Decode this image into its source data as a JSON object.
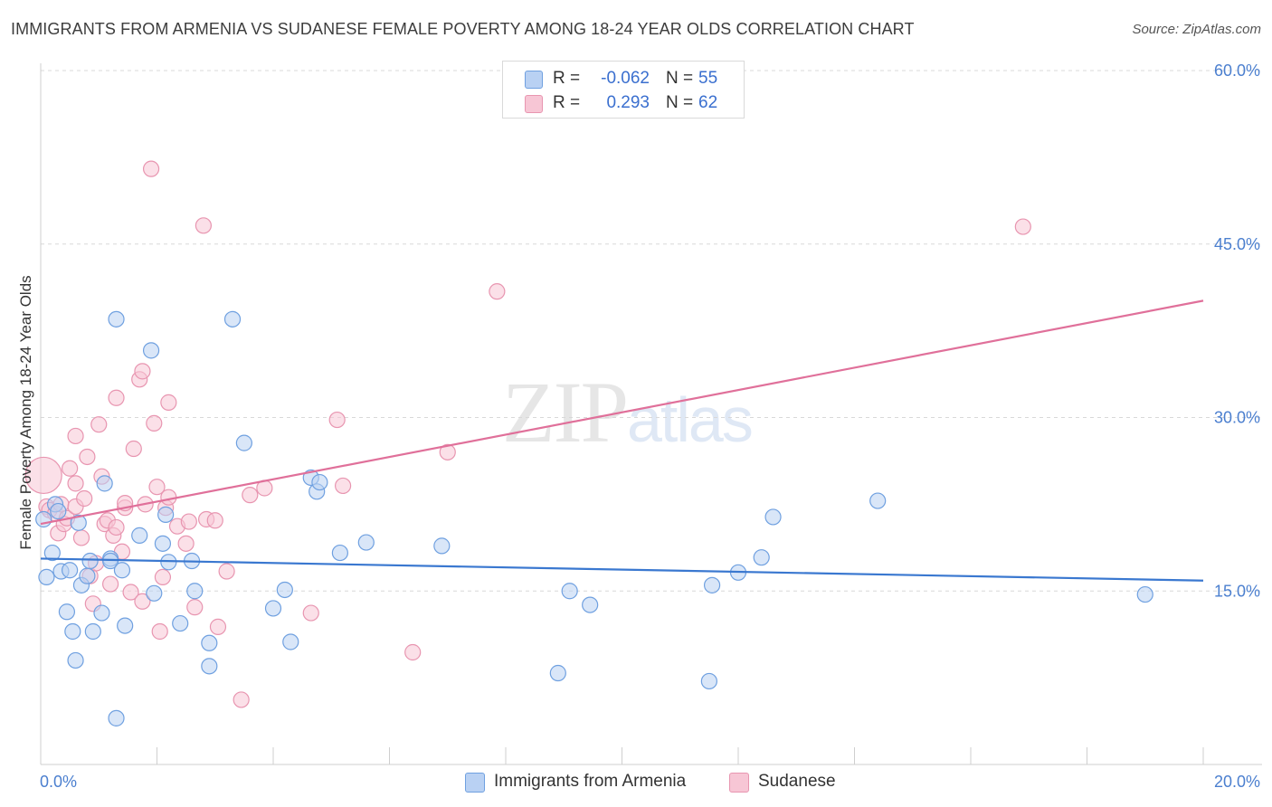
{
  "title": "IMMIGRANTS FROM ARMENIA VS SUDANESE FEMALE POVERTY AMONG 18-24 YEAR OLDS CORRELATION CHART",
  "source": "Source: ZipAtlas.com",
  "watermark": {
    "zip": "ZIP",
    "atlas": "atlas"
  },
  "colors": {
    "armenia": "#6fa0e0",
    "armenia_fill": "#b9d1f3",
    "armenia_line": "#3a78d0",
    "sudanese": "#e895b0",
    "sudanese_fill": "#f7c6d5",
    "sudanese_line": "#e0709a",
    "tick_text": "#4b7fcf",
    "grid": "#d8d8d8"
  },
  "legend": {
    "rows": [
      {
        "r_label": "R =",
        "r_value": "-0.062",
        "n_label": "N =",
        "n_value": "55"
      },
      {
        "r_label": "R =",
        "r_value": "0.293",
        "n_label": "N =",
        "n_value": "62"
      }
    ]
  },
  "bottom_legend": [
    "Immigrants from Armenia",
    "Sudanese"
  ],
  "chart_data": {
    "type": "scatter",
    "title": "IMMIGRANTS FROM ARMENIA VS SUDANESE FEMALE POVERTY AMONG 18-24 YEAR OLDS CORRELATION CHART",
    "xlabel": "",
    "ylabel": "Female Poverty Among 18-24 Year Olds",
    "xlim": [
      0,
      20
    ],
    "ylim": [
      0,
      60
    ],
    "x_tick_labels": [
      "0.0%",
      "20.0%"
    ],
    "y_ticks": [
      15,
      30,
      45,
      60
    ],
    "y_tick_labels": [
      "15.0%",
      "30.0%",
      "45.0%",
      "60.0%"
    ],
    "grid": true,
    "legend_position": "top-center",
    "series": [
      {
        "name": "Immigrants from Armenia",
        "trend": {
          "x": [
            0,
            20
          ],
          "y": [
            17.8,
            15.9
          ]
        },
        "points": [
          [
            0.1,
            16.2
          ],
          [
            0.2,
            18.3
          ],
          [
            0.25,
            22.5
          ],
          [
            0.3,
            21.9
          ],
          [
            0.35,
            16.7
          ],
          [
            0.45,
            13.2
          ],
          [
            0.5,
            16.8
          ],
          [
            0.55,
            11.5
          ],
          [
            0.6,
            9.0
          ],
          [
            0.65,
            20.9
          ],
          [
            0.7,
            15.5
          ],
          [
            0.8,
            16.3
          ],
          [
            0.85,
            17.6
          ],
          [
            0.9,
            11.5
          ],
          [
            1.05,
            13.1
          ],
          [
            1.1,
            24.3
          ],
          [
            1.2,
            17.8
          ],
          [
            1.2,
            17.6
          ],
          [
            1.3,
            4.0
          ],
          [
            1.3,
            38.5
          ],
          [
            1.4,
            16.8
          ],
          [
            1.45,
            12.0
          ],
          [
            1.7,
            19.8
          ],
          [
            1.9,
            35.8
          ],
          [
            1.95,
            14.8
          ],
          [
            2.1,
            19.1
          ],
          [
            2.15,
            21.6
          ],
          [
            2.2,
            17.5
          ],
          [
            2.4,
            12.2
          ],
          [
            2.6,
            17.6
          ],
          [
            2.65,
            15.0
          ],
          [
            2.9,
            10.5
          ],
          [
            2.9,
            8.5
          ],
          [
            3.3,
            38.5
          ],
          [
            3.5,
            27.8
          ],
          [
            4.0,
            13.5
          ],
          [
            4.2,
            15.1
          ],
          [
            4.3,
            10.6
          ],
          [
            4.65,
            24.8
          ],
          [
            4.75,
            23.6
          ],
          [
            4.8,
            24.4
          ],
          [
            5.15,
            18.3
          ],
          [
            5.6,
            19.2
          ],
          [
            6.9,
            18.9
          ],
          [
            8.9,
            7.9
          ],
          [
            9.1,
            15.0
          ],
          [
            9.45,
            13.8
          ],
          [
            11.5,
            7.2
          ],
          [
            11.55,
            15.5
          ],
          [
            12.0,
            16.6
          ],
          [
            12.4,
            17.9
          ],
          [
            12.6,
            21.4
          ],
          [
            14.4,
            22.8
          ],
          [
            19.0,
            14.7
          ],
          [
            0.05,
            21.2
          ]
        ]
      },
      {
        "name": "Sudanese",
        "trend": {
          "x": [
            0,
            20
          ],
          "y": [
            20.8,
            40.1
          ]
        },
        "points": [
          [
            0.05,
            25.0
          ],
          [
            0.1,
            22.3
          ],
          [
            0.15,
            22.0
          ],
          [
            0.25,
            21.7
          ],
          [
            0.3,
            20.0
          ],
          [
            0.35,
            22.5
          ],
          [
            0.4,
            20.8
          ],
          [
            0.45,
            21.3
          ],
          [
            0.5,
            25.6
          ],
          [
            0.6,
            24.3
          ],
          [
            0.6,
            22.3
          ],
          [
            0.6,
            28.4
          ],
          [
            0.7,
            19.6
          ],
          [
            0.75,
            23.0
          ],
          [
            0.8,
            26.6
          ],
          [
            0.85,
            16.3
          ],
          [
            0.9,
            13.9
          ],
          [
            0.95,
            17.4
          ],
          [
            1.0,
            29.4
          ],
          [
            1.05,
            24.9
          ],
          [
            1.1,
            20.8
          ],
          [
            1.15,
            21.1
          ],
          [
            1.2,
            15.6
          ],
          [
            1.25,
            19.8
          ],
          [
            1.3,
            20.5
          ],
          [
            1.3,
            31.7
          ],
          [
            1.4,
            18.4
          ],
          [
            1.45,
            22.2
          ],
          [
            1.45,
            22.6
          ],
          [
            1.55,
            14.9
          ],
          [
            1.6,
            27.3
          ],
          [
            1.7,
            33.3
          ],
          [
            1.75,
            34.0
          ],
          [
            1.75,
            14.1
          ],
          [
            1.8,
            22.5
          ],
          [
            1.9,
            51.5
          ],
          [
            1.95,
            29.5
          ],
          [
            2.0,
            24.0
          ],
          [
            2.05,
            11.5
          ],
          [
            2.1,
            16.2
          ],
          [
            2.15,
            22.2
          ],
          [
            2.2,
            23.1
          ],
          [
            2.2,
            31.3
          ],
          [
            2.35,
            20.6
          ],
          [
            2.5,
            19.1
          ],
          [
            2.55,
            21.0
          ],
          [
            2.65,
            13.6
          ],
          [
            2.8,
            46.6
          ],
          [
            2.85,
            21.2
          ],
          [
            3.0,
            21.1
          ],
          [
            3.05,
            11.9
          ],
          [
            3.2,
            16.7
          ],
          [
            3.45,
            5.6
          ],
          [
            3.6,
            23.3
          ],
          [
            3.85,
            23.9
          ],
          [
            4.65,
            13.1
          ],
          [
            5.1,
            29.8
          ],
          [
            5.2,
            24.1
          ],
          [
            6.4,
            9.7
          ],
          [
            7.0,
            27.0
          ],
          [
            7.85,
            40.9
          ],
          [
            16.9,
            46.5
          ]
        ]
      }
    ]
  }
}
